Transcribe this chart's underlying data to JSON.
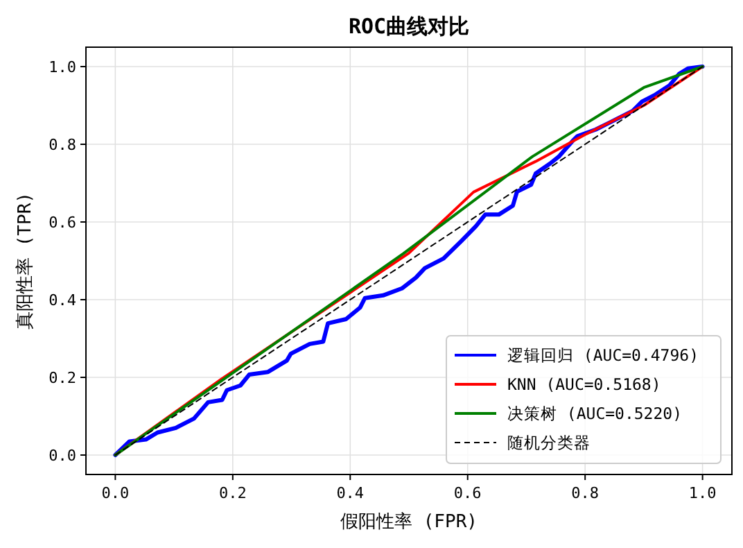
{
  "chart_data": {
    "type": "line",
    "title": "ROC曲线对比",
    "xlabel": "假阳性率 (FPR)",
    "ylabel": "真阳性率 (TPR)",
    "xlim": [
      -0.05,
      1.05
    ],
    "ylim": [
      -0.05,
      1.05
    ],
    "xticks": [
      {
        "value": 0,
        "label": "0.0"
      },
      {
        "value": 0.2,
        "label": "0.2"
      },
      {
        "value": 0.4,
        "label": "0.4"
      },
      {
        "value": 0.6,
        "label": "0.6"
      },
      {
        "value": 0.8,
        "label": "0.8"
      },
      {
        "value": 1,
        "label": "1.0"
      }
    ],
    "yticks": [
      {
        "value": 0,
        "label": "0.0"
      },
      {
        "value": 0.2,
        "label": "0.2"
      },
      {
        "value": 0.4,
        "label": "0.4"
      },
      {
        "value": 0.6,
        "label": "0.6"
      },
      {
        "value": 0.8,
        "label": "0.8"
      },
      {
        "value": 1,
        "label": "1.0"
      }
    ],
    "grid": true,
    "legend": "bottom right",
    "series": [
      {
        "name": "逻辑回归 (AUC=0.4796)",
        "color": "#0000ff",
        "x": [
          0,
          0.024,
          0.052,
          0.072,
          0.103,
          0.134,
          0.158,
          0.182,
          0.19,
          0.213,
          0.228,
          0.26,
          0.292,
          0.299,
          0.331,
          0.354,
          0.362,
          0.393,
          0.417,
          0.425,
          0.456,
          0.488,
          0.512,
          0.527,
          0.559,
          0.59,
          0.614,
          0.63,
          0.653,
          0.677,
          0.684,
          0.708,
          0.716,
          0.74,
          0.755,
          0.779,
          0.787,
          0.818,
          0.842,
          0.881,
          0.897,
          0.92,
          0.944,
          0.96,
          0.975,
          1
        ],
        "values": [
          0,
          0.035,
          0.04,
          0.058,
          0.07,
          0.094,
          0.136,
          0.142,
          0.167,
          0.179,
          0.207,
          0.214,
          0.243,
          0.261,
          0.286,
          0.292,
          0.339,
          0.35,
          0.38,
          0.404,
          0.411,
          0.429,
          0.457,
          0.481,
          0.506,
          0.552,
          0.589,
          0.619,
          0.619,
          0.642,
          0.678,
          0.696,
          0.725,
          0.75,
          0.768,
          0.809,
          0.821,
          0.838,
          0.856,
          0.886,
          0.91,
          0.928,
          0.952,
          0.981,
          0.995,
          1
        ]
      },
      {
        "name": "KNN (AUC=0.5168)",
        "color": "#ff0000",
        "x": [
          0,
          0.18,
          0.5,
          0.61,
          0.716,
          0.8,
          0.9,
          0.95,
          1
        ],
        "values": [
          0,
          0.195,
          0.52,
          0.677,
          0.756,
          0.825,
          0.9,
          0.95,
          1
        ]
      },
      {
        "name": "决策树 (AUC=0.5220)",
        "color": "#008000",
        "x": [
          0,
          0.49,
          0.71,
          0.9,
          1
        ],
        "values": [
          0,
          0.518,
          0.768,
          0.946,
          1
        ]
      },
      {
        "name": "随机分类器",
        "color": "#000000",
        "line_style": "dashed",
        "x": [
          0,
          1
        ],
        "values": [
          0,
          1
        ]
      }
    ]
  }
}
